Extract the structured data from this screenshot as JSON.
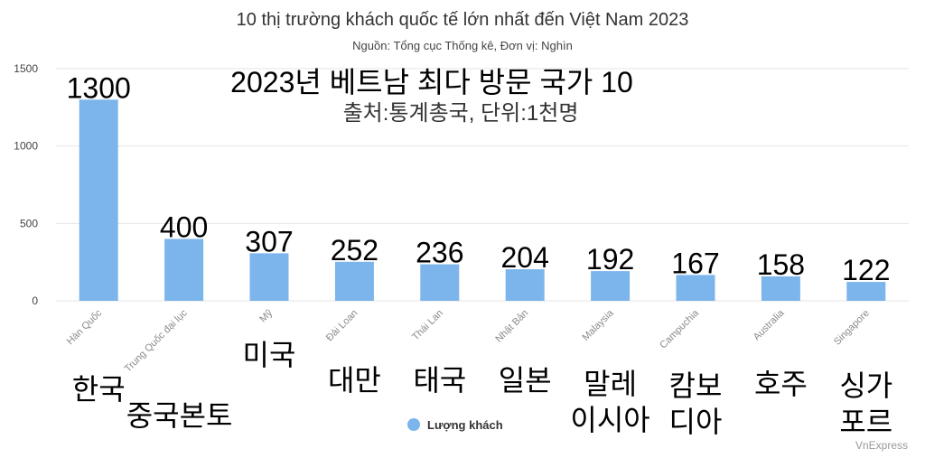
{
  "chart_data": {
    "type": "bar",
    "title": "10 thị trường khách quốc tế lớn nhất đến Việt Nam 2023",
    "subtitle": "Nguồn: Tổng cục Thống kê, Đơn vị: Nghìn",
    "categories": [
      "Hàn Quốc",
      "Trung Quốc đại lục",
      "Mỹ",
      "Đài Loan",
      "Thái Lan",
      "Nhật Bản",
      "Malaysia",
      "Campuchia",
      "Australia",
      "Singapore"
    ],
    "series": [
      {
        "name": "Lượng khách",
        "values": [
          1300,
          400,
          307,
          252,
          236,
          204,
          192,
          167,
          158,
          122
        ]
      }
    ],
    "data_labels": [
      "1300",
      "400",
      "307",
      "252",
      "236",
      "204",
      "192",
      "167",
      "158",
      "122"
    ],
    "yticks": [
      0,
      500,
      1000,
      1500
    ],
    "ylim": [
      0,
      1500
    ],
    "grid": true,
    "legend": "bottom",
    "bar_color": "#7cb5ec"
  },
  "korean_overlay": {
    "title": "2023년 베트남 최다 방문 국가 10",
    "subtitle": "출처:통계총국, 단위:1천명",
    "labels": [
      [
        "한국"
      ],
      [
        "중국본토"
      ],
      [
        "미국"
      ],
      [
        "대만"
      ],
      [
        "태국"
      ],
      [
        "일본"
      ],
      [
        "말레",
        "이시아"
      ],
      [
        "캄보",
        "디아"
      ],
      [
        "호주"
      ],
      [
        "싱가",
        "포르"
      ]
    ]
  },
  "credit": "VnExpress"
}
